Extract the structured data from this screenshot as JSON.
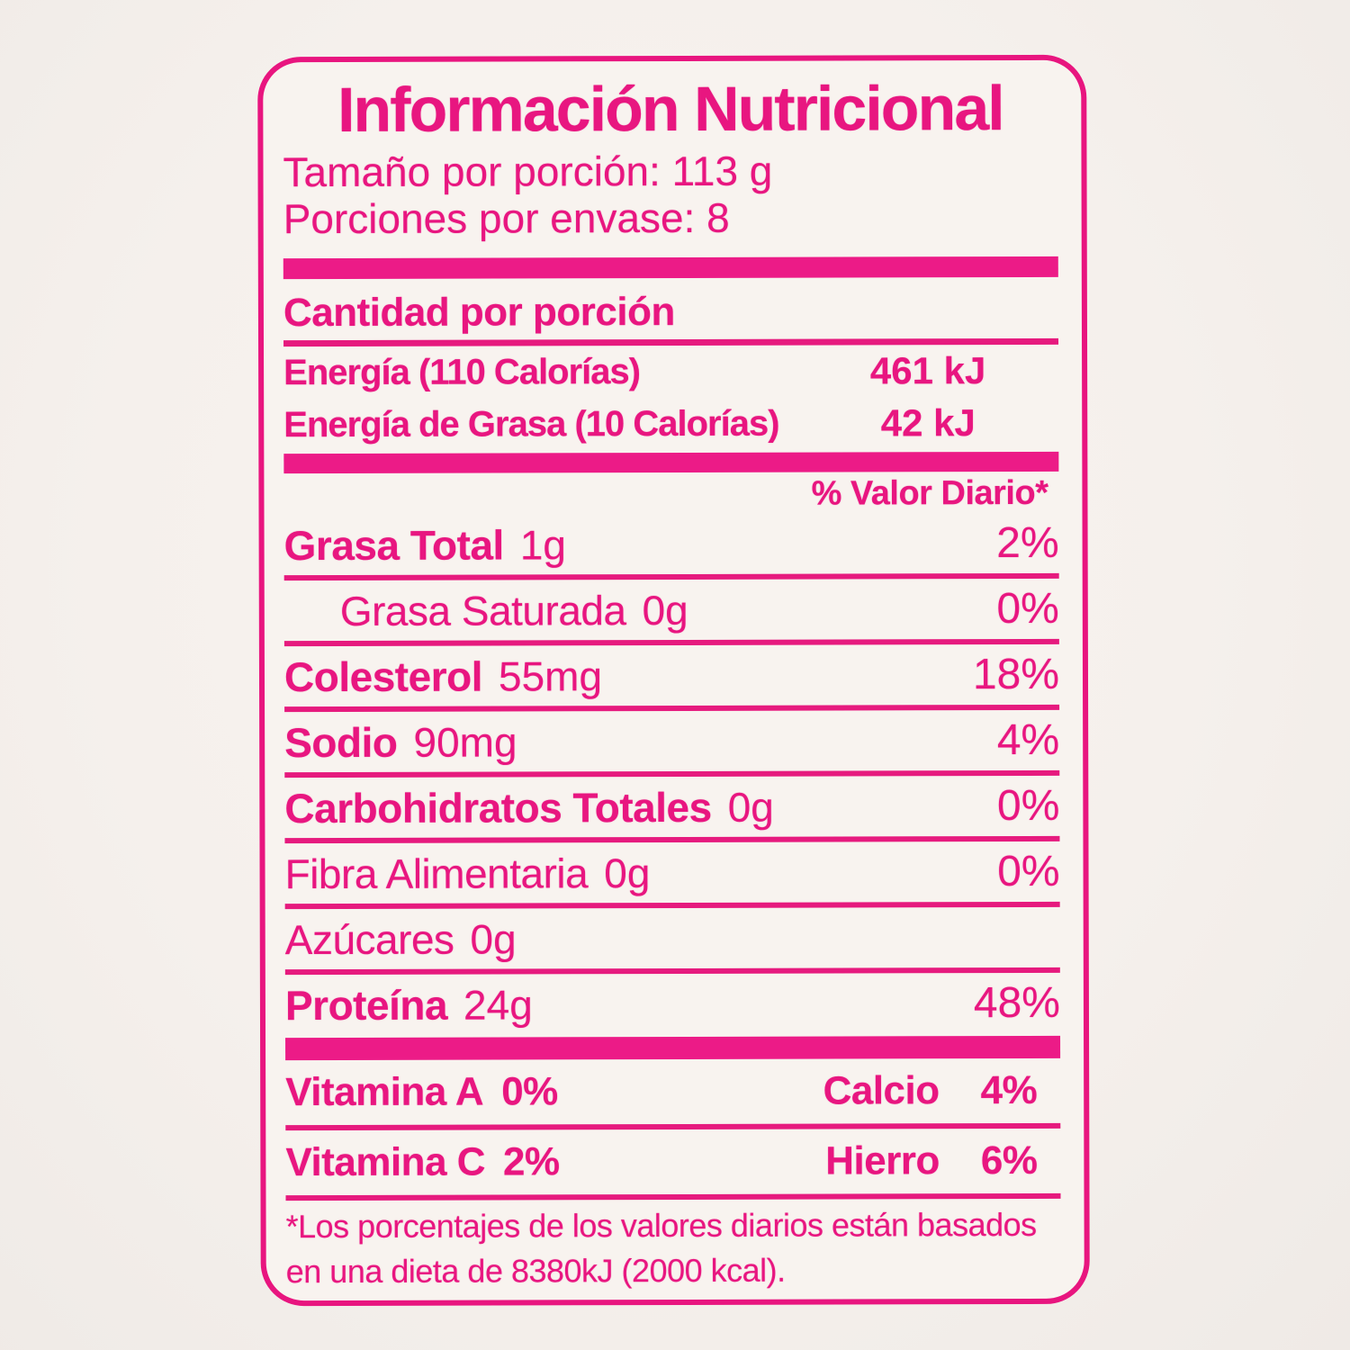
{
  "colors": {
    "ink": "#e81680",
    "bar": "#ec1b87",
    "rule": "#e61a7e",
    "border": "#e8157f",
    "paper": "#f8f3ef",
    "background": "#f5f0ec"
  },
  "label": {
    "title": "Información Nutricional",
    "serving_size": "Tamaño por porción: 113 g",
    "servings_per_container": "Porciones por envase: 8",
    "amount_header": "Cantidad por porción",
    "energy_rows": [
      {
        "name": "Energía (110 Calorías)",
        "value": "461 kJ"
      },
      {
        "name": "Energía de Grasa (10 Calorías)",
        "value": "42 kJ"
      }
    ],
    "dv_header": "% Valor Diario*",
    "nutrients": [
      {
        "name": "Grasa Total",
        "amount": "1g",
        "dv": "2%"
      },
      {
        "name": "Grasa Saturada",
        "amount": "0g",
        "dv": "0%"
      },
      {
        "name": "Colesterol",
        "amount": "55mg",
        "dv": "18%"
      },
      {
        "name": "Sodio",
        "amount": "90mg",
        "dv": "4%"
      },
      {
        "name": "Carbohidratos Totales",
        "amount": "0g",
        "dv": "0%"
      },
      {
        "name": "Fibra Alimentaria",
        "amount": "0g",
        "dv": "0%"
      },
      {
        "name": "Azúcares",
        "amount": "0g",
        "dv": ""
      },
      {
        "name": "Proteína",
        "amount": "24g",
        "dv": "48%"
      }
    ],
    "micronutrients": [
      {
        "left_name": "Vitamina A",
        "left_value": "0%",
        "right_name": "Calcio",
        "right_value": "4%"
      },
      {
        "left_name": "Vitamina C",
        "left_value": "2%",
        "right_name": "Hierro",
        "right_value": "6%"
      }
    ],
    "footnote_line1": "*Los porcentajes de los valores diarios están basados",
    "footnote_line2": "en una dieta de 8380kJ (2000 kcal)."
  }
}
